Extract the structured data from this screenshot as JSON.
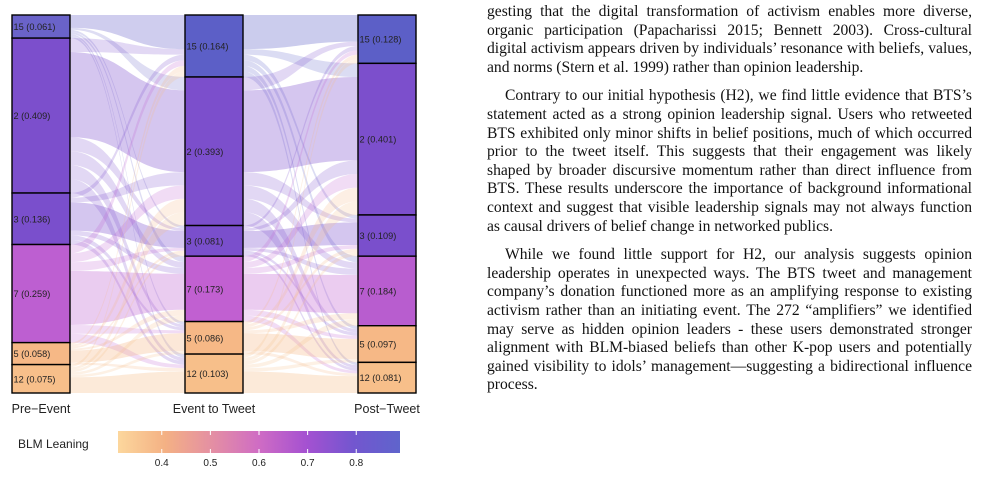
{
  "chart_data": {
    "type": "alluvial",
    "stages": [
      "Pre−Event",
      "Event to Tweet",
      "Post−Tweet"
    ],
    "columns": [
      {
        "stage": "Pre−Event",
        "nodes": [
          {
            "id": "15",
            "label": "15 (0.061)",
            "value": 0.061,
            "color": "#6a63c9"
          },
          {
            "id": "2",
            "label": "2 (0.409)",
            "value": 0.409,
            "color": "#7c4fcc"
          },
          {
            "id": "3",
            "label": "3 (0.136)",
            "value": 0.136,
            "color": "#7a4fcc"
          },
          {
            "id": "7",
            "label": "7 (0.259)",
            "value": 0.259,
            "color": "#bd5fd1"
          },
          {
            "id": "5",
            "label": "5 (0.058)",
            "value": 0.058,
            "color": "#f6b886"
          },
          {
            "id": "12",
            "label": "12 (0.075)",
            "value": 0.075,
            "color": "#f7bf8a"
          }
        ]
      },
      {
        "stage": "Event to Tweet",
        "nodes": [
          {
            "id": "15",
            "label": "15 (0.164)",
            "value": 0.164,
            "color": "#5c5fc7"
          },
          {
            "id": "2",
            "label": "2 (0.393)",
            "value": 0.393,
            "color": "#7c4fcc"
          },
          {
            "id": "3",
            "label": "3 (0.081)",
            "value": 0.081,
            "color": "#7a4fcc"
          },
          {
            "id": "7",
            "label": "7 (0.173)",
            "value": 0.173,
            "color": "#c160d1"
          },
          {
            "id": "5",
            "label": "5 (0.086)",
            "value": 0.086,
            "color": "#f6b886"
          },
          {
            "id": "12",
            "label": "12 (0.103)",
            "value": 0.103,
            "color": "#f7bf8a"
          }
        ]
      },
      {
        "stage": "Post−Tweet",
        "nodes": [
          {
            "id": "15",
            "label": "15 (0.128)",
            "value": 0.128,
            "color": "#5c5fc7"
          },
          {
            "id": "2",
            "label": "2 (0.401)",
            "value": 0.401,
            "color": "#7c4fcc"
          },
          {
            "id": "3",
            "label": "3 (0.109)",
            "value": 0.109,
            "color": "#7a4fcc"
          },
          {
            "id": "7",
            "label": "7 (0.184)",
            "value": 0.184,
            "color": "#b85dcf"
          },
          {
            "id": "5",
            "label": "5 (0.097)",
            "value": 0.097,
            "color": "#f6b886"
          },
          {
            "id": "12",
            "label": "12 (0.081)",
            "value": 0.081,
            "color": "#f7bf8a"
          }
        ]
      }
    ],
    "legend": {
      "title": "BLM Leaning",
      "ticks": [
        "0.4",
        "0.5",
        "0.6",
        "0.7",
        "0.8"
      ],
      "tick_values": [
        0.4,
        0.5,
        0.6,
        0.7,
        0.8
      ],
      "range": [
        0.31,
        0.89
      ],
      "colors": [
        "#fcd79d",
        "#f4b184",
        "#e48fa3",
        "#cf6cc4",
        "#a551d1",
        "#7356cf",
        "#5f64cc"
      ]
    }
  },
  "text": {
    "paragraphs": [
      "gesting that the digital transformation of activism enables more diverse, organic participation (Papacharissi 2015; Bennett 2003). Cross-cultural digital activism appears driven by individuals’ resonance with beliefs, values, and norms (Stern et al. 1999) rather than opinion leadership.",
      "Contrary to our initial hypothesis (H2), we find little evidence that BTS’s statement acted as a strong opinion leadership signal. Users who retweeted BTS exhibited only minor shifts in belief positions, much of which occurred prior to the tweet itself. This suggests that their engagement was likely shaped by broader discursive momentum rather than direct influence from BTS. These results underscore the importance of background informational context and suggest that visible leadership signals may not always function as causal drivers of belief change in networked publics.",
      "While we found little support for H2, our analysis suggests opinion leadership operates in unexpected ways. The BTS tweet and management company’s donation functioned more as an amplifying response to existing activism rather than an initiating event. The 272 “amplifiers” we identified may serve as hidden opinion leaders - these users demonstrated stronger alignment with BLM-biased beliefs than other K-pop users and potentially gained visibility to idols’ management—suggesting a bidirectional influence process."
    ]
  }
}
